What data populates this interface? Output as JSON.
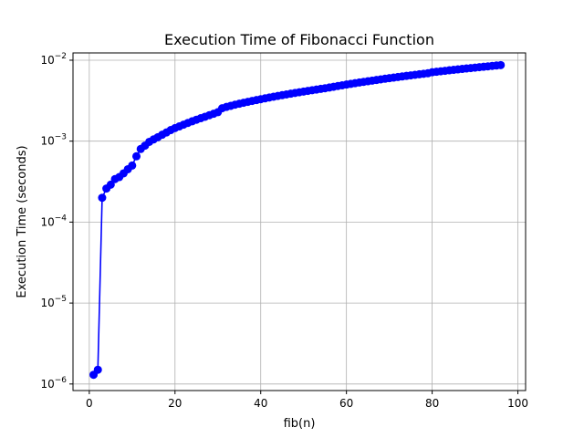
{
  "chart_data": {
    "type": "line",
    "title": "Execution Time of Fibonacci Function",
    "xlabel": "fib(n)",
    "ylabel": "Execution Time (seconds)",
    "xlim": [
      -3.8,
      101.8
    ],
    "ylim": [
      8.3e-07,
      0.0123
    ],
    "yscale": "log",
    "grid": true,
    "color": "#0000ff",
    "marker": "circle",
    "xticks": [
      {
        "value": 0,
        "label": "0"
      },
      {
        "value": 20,
        "label": "20"
      },
      {
        "value": 40,
        "label": "40"
      },
      {
        "value": 60,
        "label": "60"
      },
      {
        "value": 80,
        "label": "80"
      },
      {
        "value": 100,
        "label": "100"
      }
    ],
    "yticks": [
      {
        "value": 1e-06,
        "base": "10",
        "exp": "−6"
      },
      {
        "value": 1e-05,
        "base": "10",
        "exp": "−5"
      },
      {
        "value": 0.0001,
        "base": "10",
        "exp": "−4"
      },
      {
        "value": 0.001,
        "base": "10",
        "exp": "−3"
      },
      {
        "value": 0.01,
        "base": "10",
        "exp": "−2"
      }
    ],
    "series": [
      {
        "x": [
          1,
          2,
          3,
          4,
          5,
          6,
          7,
          8,
          9,
          10,
          11,
          12,
          13,
          14,
          15,
          16,
          17,
          18,
          19,
          20,
          21,
          22,
          23,
          24,
          25,
          26,
          27,
          28,
          29,
          30,
          31,
          32,
          33,
          34,
          35,
          36,
          37,
          38,
          39,
          40,
          41,
          42,
          43,
          44,
          45,
          46,
          47,
          48,
          49,
          50,
          51,
          52,
          53,
          54,
          55,
          56,
          57,
          58,
          59,
          60,
          61,
          62,
          63,
          64,
          65,
          66,
          67,
          68,
          69,
          70,
          71,
          72,
          73,
          74,
          75,
          76,
          77,
          78,
          79,
          80,
          81,
          82,
          83,
          84,
          85,
          86,
          87,
          88,
          89,
          90,
          91,
          92,
          93,
          94,
          95,
          96
        ],
        "y": [
          1.3e-06,
          1.5e-06,
          0.0002,
          0.00026,
          0.00029,
          0.00034,
          0.00036,
          0.0004,
          0.00045,
          0.0005,
          0.00065,
          0.0008,
          0.00088,
          0.00098,
          0.00105,
          0.00112,
          0.0012,
          0.00128,
          0.00137,
          0.00145,
          0.00152,
          0.0016,
          0.00168,
          0.00176,
          0.00184,
          0.00192,
          0.002,
          0.00209,
          0.00218,
          0.00228,
          0.00255,
          0.00265,
          0.00273,
          0.00282,
          0.0029,
          0.00298,
          0.00306,
          0.00314,
          0.00322,
          0.0033,
          0.00338,
          0.00346,
          0.00354,
          0.00362,
          0.0037,
          0.00378,
          0.00386,
          0.00394,
          0.00402,
          0.0041,
          0.00418,
          0.00426,
          0.00434,
          0.00442,
          0.0045,
          0.0046,
          0.0047,
          0.0048,
          0.0049,
          0.005,
          0.0051,
          0.0052,
          0.0053,
          0.0054,
          0.0055,
          0.0056,
          0.0057,
          0.0058,
          0.0059,
          0.006,
          0.0061,
          0.0062,
          0.0063,
          0.0064,
          0.0065,
          0.0066,
          0.0067,
          0.0068,
          0.0069,
          0.0071,
          0.0072,
          0.0073,
          0.0074,
          0.0075,
          0.0076,
          0.0077,
          0.0078,
          0.0079,
          0.008,
          0.0081,
          0.0082,
          0.0083,
          0.0084,
          0.0085,
          0.0086,
          0.0087
        ]
      }
    ]
  }
}
